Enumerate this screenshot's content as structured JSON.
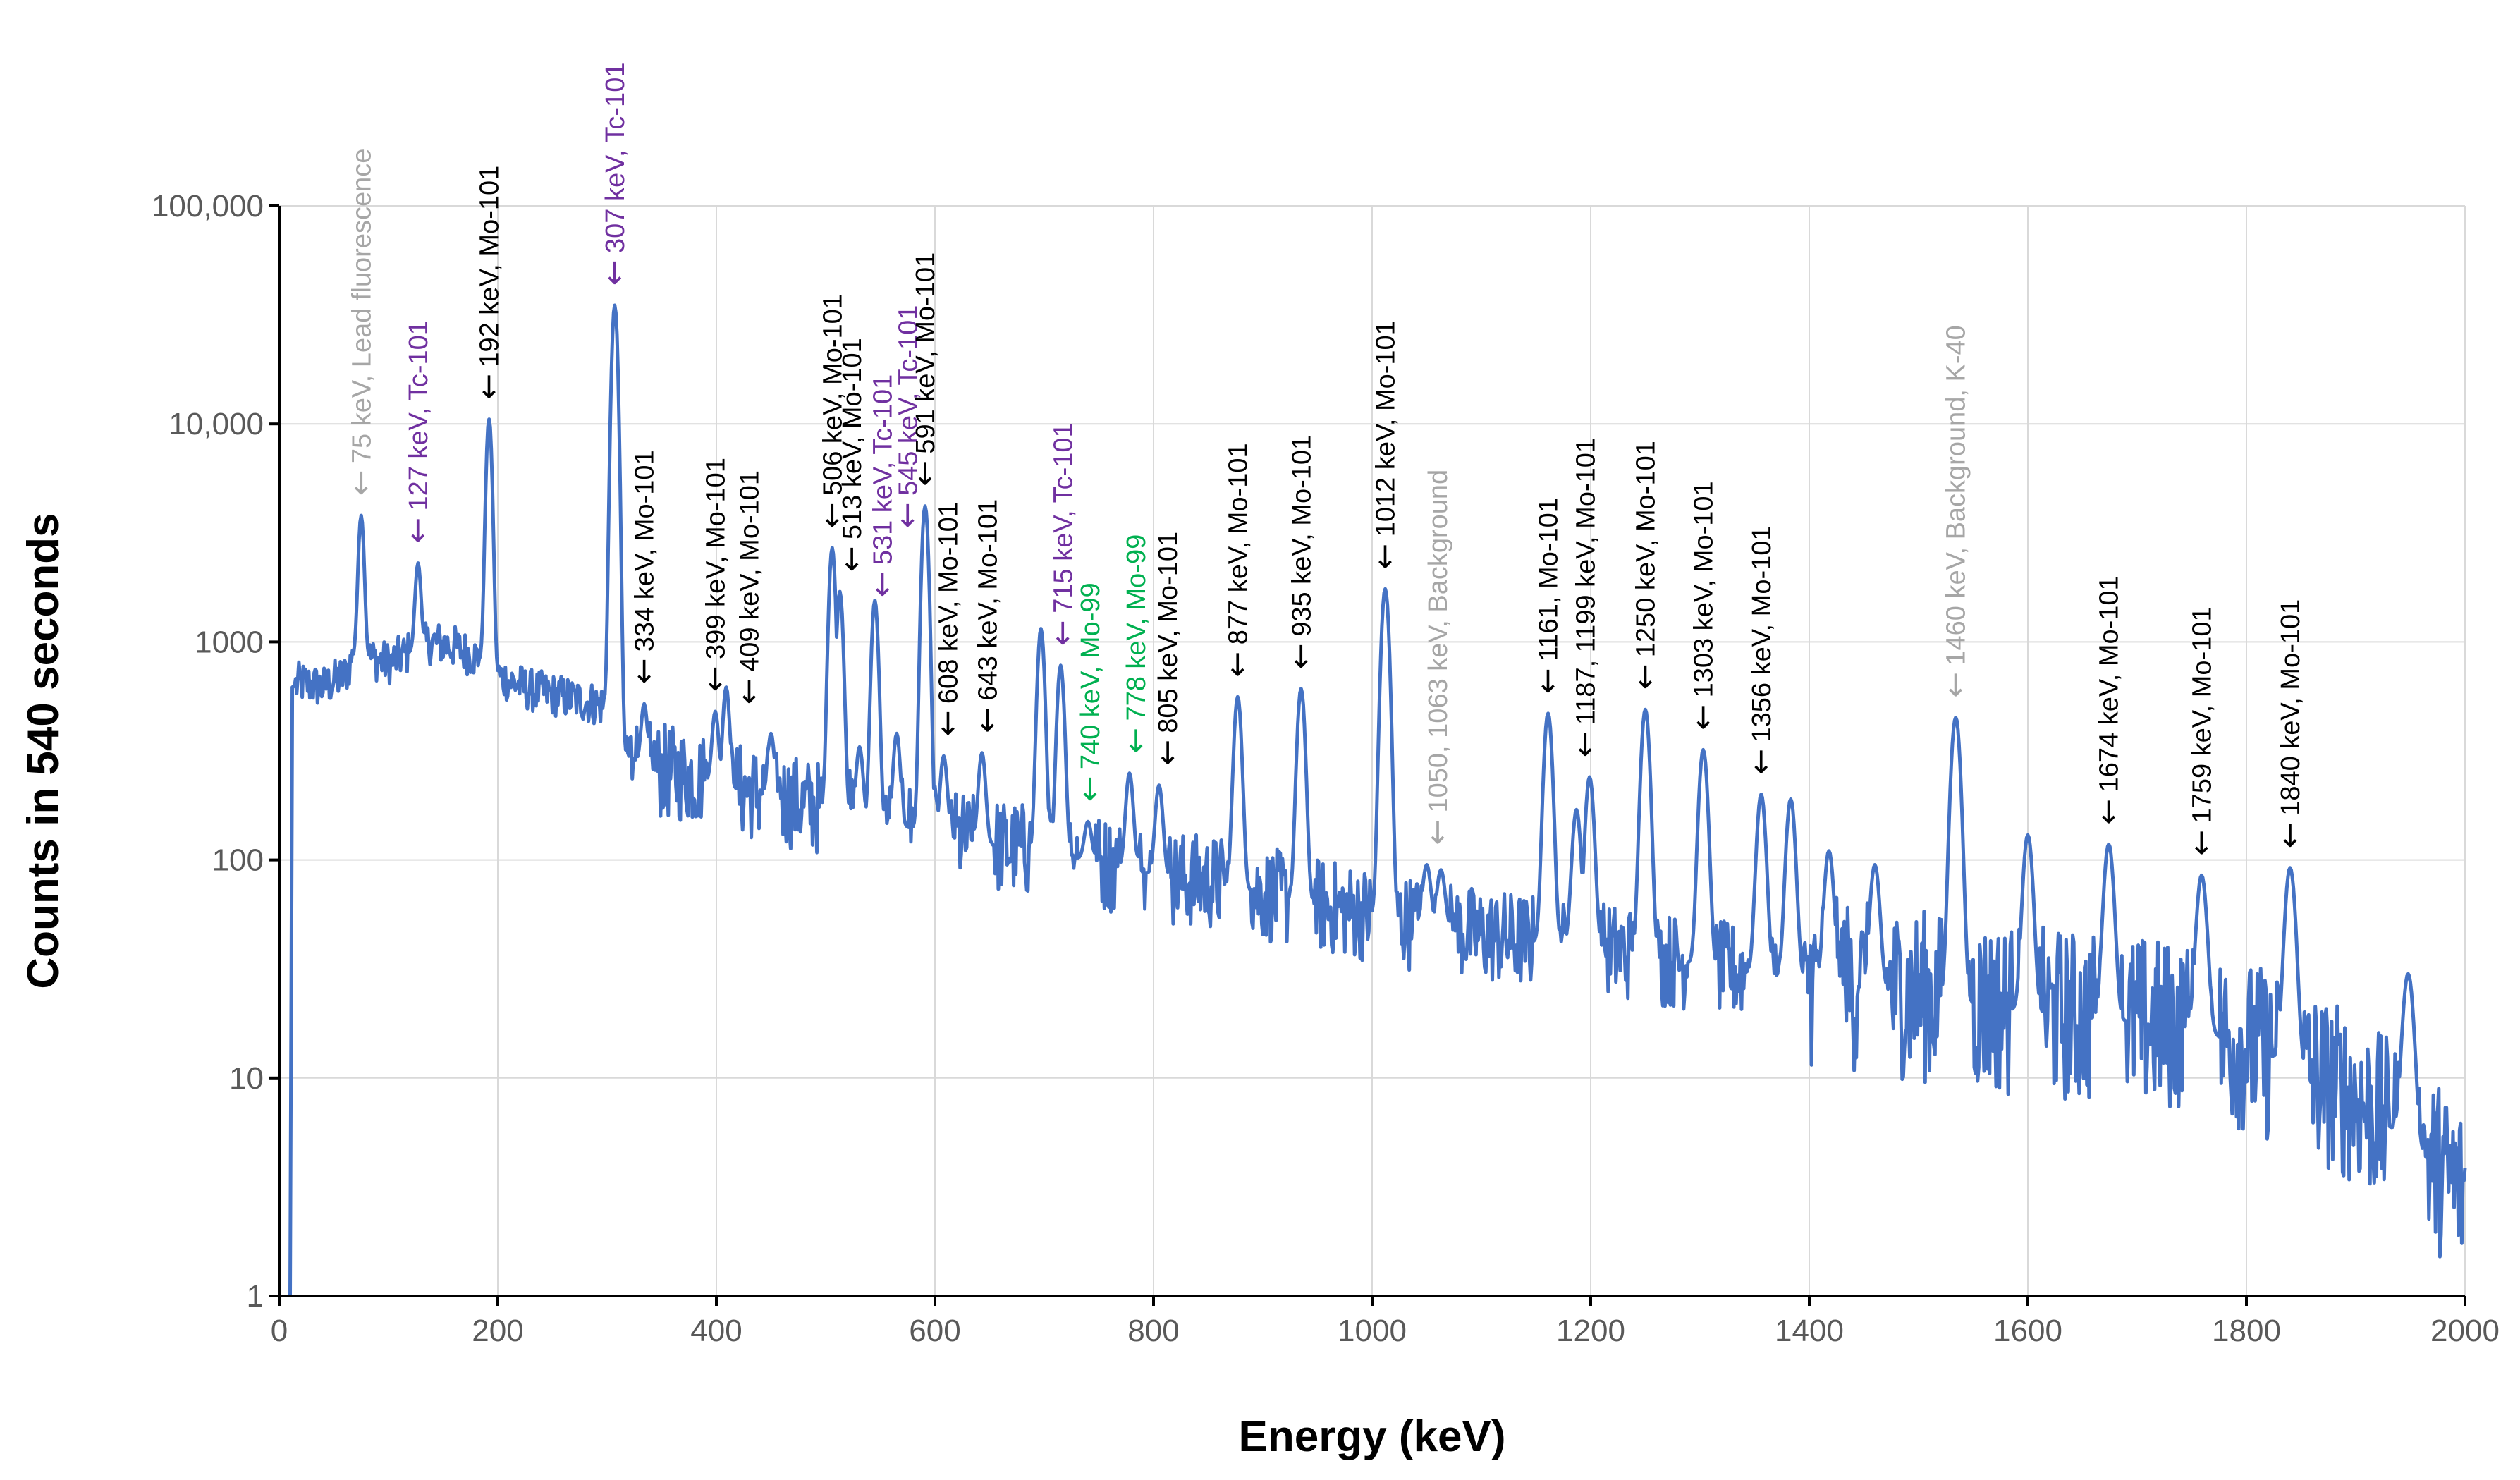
{
  "chart_data": {
    "type": "line",
    "title": "",
    "xlabel": "Energy (keV)",
    "ylabel": "Counts in 540 seconds",
    "xlim": [
      0,
      2000
    ],
    "ylim": [
      1,
      100000
    ],
    "y_scale": "log",
    "grid": true,
    "legend": "none",
    "x_ticks": [
      0,
      200,
      400,
      600,
      800,
      1000,
      1200,
      1400,
      1600,
      1800,
      2000
    ],
    "x_tick_labels": [
      "0",
      "200",
      "400",
      "600",
      "800",
      "1000",
      "1200",
      "1400",
      "1600",
      "1800",
      "2000"
    ],
    "y_ticks": [
      1,
      10,
      100,
      1000,
      10000,
      100000
    ],
    "y_tick_labels": [
      "1",
      "10",
      "100",
      "1000",
      "10,000",
      "100,000"
    ],
    "series": [
      {
        "color": "#4472c4",
        "baseline": [
          [
            10,
            1
          ],
          [
            12,
            620
          ],
          [
            20,
            650
          ],
          [
            40,
            620
          ],
          [
            60,
            700
          ],
          [
            70,
            900
          ],
          [
            80,
            850
          ],
          [
            100,
            800
          ],
          [
            120,
            900
          ],
          [
            140,
            1000
          ],
          [
            160,
            950
          ],
          [
            180,
            850
          ],
          [
            200,
            700
          ],
          [
            230,
            600
          ],
          [
            260,
            560
          ],
          [
            290,
            520
          ],
          [
            305,
            500
          ],
          [
            310,
            320
          ],
          [
            340,
            260
          ],
          [
            380,
            240
          ],
          [
            420,
            210
          ],
          [
            460,
            190
          ],
          [
            500,
            170
          ],
          [
            540,
            150
          ],
          [
            580,
            140
          ],
          [
            620,
            125
          ],
          [
            660,
            115
          ],
          [
            700,
            108
          ],
          [
            740,
            100
          ],
          [
            780,
            90
          ],
          [
            820,
            82
          ],
          [
            860,
            78
          ],
          [
            900,
            70
          ],
          [
            950,
            62
          ],
          [
            1000,
            56
          ],
          [
            1050,
            50
          ],
          [
            1100,
            45
          ],
          [
            1150,
            42
          ],
          [
            1200,
            40
          ],
          [
            1250,
            36
          ],
          [
            1300,
            33
          ],
          [
            1350,
            30
          ],
          [
            1400,
            28
          ],
          [
            1450,
            26
          ],
          [
            1500,
            24
          ],
          [
            1550,
            22
          ],
          [
            1600,
            20
          ],
          [
            1650,
            19
          ],
          [
            1700,
            18
          ],
          [
            1750,
            17
          ],
          [
            1800,
            14
          ],
          [
            1850,
            11
          ],
          [
            1900,
            8
          ],
          [
            1950,
            5
          ],
          [
            2000,
            3
          ]
        ],
        "peaks": [
          [
            75,
            3800
          ],
          [
            127,
            2300
          ],
          [
            192,
            10500
          ],
          [
            307,
            35000
          ],
          [
            334,
            520
          ],
          [
            399,
            480
          ],
          [
            409,
            620
          ],
          [
            450,
            380
          ],
          [
            506,
            2700
          ],
          [
            513,
            1700
          ],
          [
            531,
            330
          ],
          [
            545,
            1550
          ],
          [
            565,
            380
          ],
          [
            591,
            4200
          ],
          [
            608,
            300
          ],
          [
            643,
            310
          ],
          [
            697,
            1150
          ],
          [
            715,
            780
          ],
          [
            740,
            150
          ],
          [
            778,
            250
          ],
          [
            805,
            220
          ],
          [
            877,
            560
          ],
          [
            935,
            610
          ],
          [
            1012,
            1750
          ],
          [
            1050,
            95
          ],
          [
            1063,
            90
          ],
          [
            1161,
            470
          ],
          [
            1187,
            170
          ],
          [
            1199,
            240
          ],
          [
            1250,
            490
          ],
          [
            1303,
            320
          ],
          [
            1356,
            200
          ],
          [
            1383,
            190
          ],
          [
            1418,
            110
          ],
          [
            1460,
            95
          ],
          [
            1534,
            450
          ],
          [
            1600,
            130
          ],
          [
            1674,
            118
          ],
          [
            1759,
            85
          ],
          [
            1840,
            92
          ],
          [
            1948,
            30
          ]
        ]
      }
    ],
    "annotations": [
      {
        "text": "75 keV, Lead fluorescence",
        "x": 75,
        "y": 3800,
        "color": "#a6a6a6"
      },
      {
        "text": "127 keV, Tc-101",
        "x": 127,
        "y": 2300,
        "color": "#7030a0"
      },
      {
        "text": "192 keV, Mo-101",
        "x": 192,
        "y": 10500,
        "color": "#000000"
      },
      {
        "text": "307 keV, Tc-101",
        "x": 307,
        "y": 35000,
        "color": "#7030a0"
      },
      {
        "text": "334 keV, Mo-101",
        "x": 334,
        "y": 520,
        "color": "#000000"
      },
      {
        "text": "399 keV, Mo-101",
        "x": 399,
        "y": 480,
        "color": "#000000"
      },
      {
        "text": "409 keV, Mo-101",
        "x": 430,
        "y": 420,
        "color": "#000000"
      },
      {
        "text": "506 keV, Mo-101",
        "x": 506,
        "y": 2700,
        "color": "#000000"
      },
      {
        "text": "513 keV, Mo-101",
        "x": 524,
        "y": 1700,
        "color": "#000000"
      },
      {
        "text": "531 keV, Tc-101",
        "x": 552,
        "y": 1300,
        "color": "#7030a0"
      },
      {
        "text": "545 keV, Tc-101",
        "x": 575,
        "y": 2700,
        "color": "#7030a0"
      },
      {
        "text": "591 keV, Mo-101",
        "x": 591,
        "y": 4200,
        "color": "#000000"
      },
      {
        "text": "608 keV, Mo-101",
        "x": 612,
        "y": 300,
        "color": "#000000"
      },
      {
        "text": "643 keV, Mo-101",
        "x": 648,
        "y": 310,
        "color": "#000000"
      },
      {
        "text": "715 keV, Tc-101",
        "x": 717,
        "y": 780,
        "color": "#7030a0"
      },
      {
        "text": "740 keV, Mo-99",
        "x": 742,
        "y": 150,
        "color": "#00b050"
      },
      {
        "text": "778 keV, Mo-99",
        "x": 784,
        "y": 250,
        "color": "#00b050"
      },
      {
        "text": "805 keV, Mo-101",
        "x": 813,
        "y": 220,
        "color": "#000000"
      },
      {
        "text": "877 keV, Mo-101",
        "x": 877,
        "y": 560,
        "color": "#000000"
      },
      {
        "text": "935 keV, Mo-101",
        "x": 935,
        "y": 610,
        "color": "#000000"
      },
      {
        "text": "1012 keV, Mo-101",
        "x": 1012,
        "y": 1750,
        "color": "#000000"
      },
      {
        "text": "1050, 1063 keV, Background",
        "x": 1060,
        "y": 95,
        "color": "#a6a6a6"
      },
      {
        "text": "1161, Mo-101",
        "x": 1161,
        "y": 470,
        "color": "#000000"
      },
      {
        "text": "1187, 1199 keV, Mo-101",
        "x": 1195,
        "y": 240,
        "color": "#000000"
      },
      {
        "text": "1250 keV, Mo-101",
        "x": 1250,
        "y": 490,
        "color": "#000000"
      },
      {
        "text": "1303 keV, Mo-101",
        "x": 1303,
        "y": 320,
        "color": "#000000"
      },
      {
        "text": "1356 keV, Mo-101",
        "x": 1356,
        "y": 200,
        "color": "#000000"
      },
      {
        "text": "1460 keV, Background, K-40",
        "x": 1534,
        "y": 450,
        "color": "#a6a6a6"
      },
      {
        "text": "1674 keV, Mo-101",
        "x": 1674,
        "y": 118,
        "color": "#000000"
      },
      {
        "text": "1759 keV, Mo-101",
        "x": 1759,
        "y": 85,
        "color": "#000000"
      },
      {
        "text": "1840 keV, Mo-101",
        "x": 1840,
        "y": 92,
        "color": "#000000"
      }
    ]
  }
}
